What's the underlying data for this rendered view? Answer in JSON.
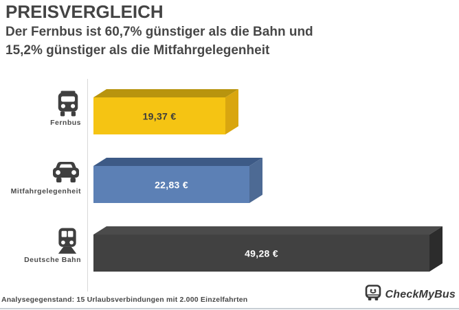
{
  "header": {
    "title": "PREISVERGLEICH",
    "subtitle_line1": "Der Fernbus ist 60,7% günstiger als die Bahn und",
    "subtitle_line2": "15,2% günstiger als die Mitfahrgelegenheit"
  },
  "chart_data": {
    "type": "bar",
    "orientation": "horizontal",
    "title": "PREISVERGLEICH",
    "subtitle": "Der Fernbus ist 60,7% günstiger als die Bahn und 15,2% günstiger als die Mitfahrgelegenheit",
    "categories": [
      "Fernbus",
      "Mitfahrgelegenheit",
      "Deutsche Bahn"
    ],
    "values": [
      19.37,
      22.83,
      49.28
    ],
    "value_labels": [
      "19,37 €",
      "22,83 €",
      "49,28 €"
    ],
    "unit": "€",
    "icons": [
      "bus-icon",
      "car-icon",
      "train-icon"
    ],
    "bar_colors": [
      {
        "front": "#f5c413",
        "top": "#b8940e",
        "side": "#d9a60f",
        "text": "#3c3c3c"
      },
      {
        "front": "#5c80b5",
        "top": "#3d5a86",
        "side": "#4d6a94",
        "text": "#ffffff"
      },
      {
        "front": "#414141",
        "top": "#4b4b4b",
        "side": "#2c2c2c",
        "text": "#ffffff"
      }
    ],
    "xlim": [
      0,
      52
    ],
    "grid": false,
    "legend": false,
    "style": "3d-extruded-bars"
  },
  "footer": {
    "note": "Analysegegenstand: 15 Urlaubsverbindungen mit 2.000 Einzelfahrten",
    "brand": "CheckMyBus"
  },
  "colors": {
    "background": "#ffffff",
    "text": "#474747",
    "axis_line": "#d8d8d8",
    "bottom_divider": "#c7ced4",
    "icon": "#3f3f3f"
  }
}
